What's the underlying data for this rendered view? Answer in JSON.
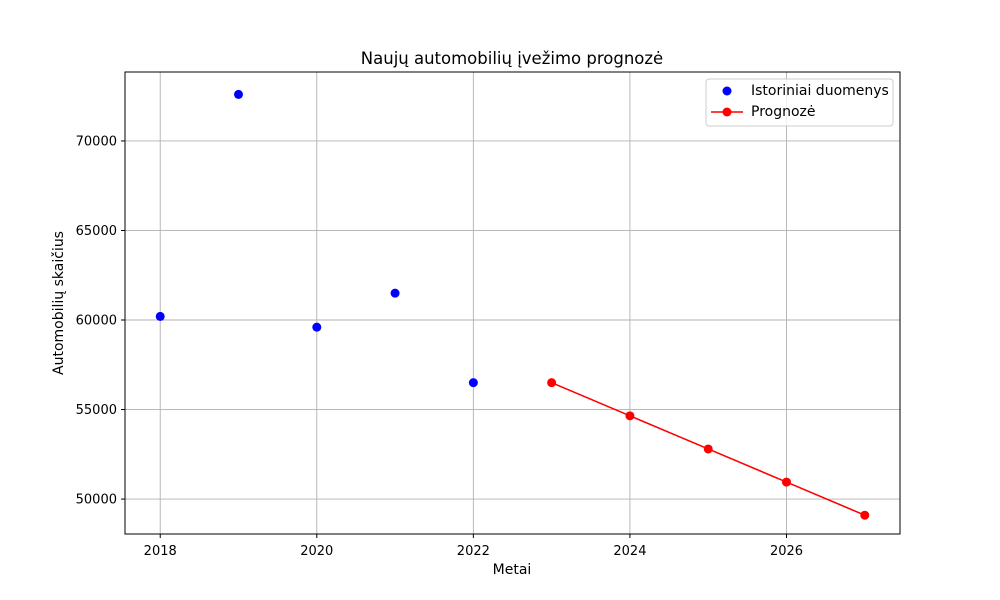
{
  "chart_data": {
    "type": "scatter",
    "title": "Naujų automobilių įvežimo prognozė",
    "xlabel": "Metai",
    "ylabel": "Automobilių skaičius",
    "xlim": [
      2017.55,
      2027.45
    ],
    "ylim": [
      48050,
      73850
    ],
    "xticks": [
      2018,
      2020,
      2022,
      2024,
      2026
    ],
    "yticks": [
      50000,
      55000,
      60000,
      65000,
      70000
    ],
    "grid": true,
    "legend_position": "top-right",
    "series": [
      {
        "name": "Istoriniai duomenys",
        "type": "scatter",
        "color": "#0000ff",
        "x": [
          2018,
          2019,
          2020,
          2021,
          2022
        ],
        "y": [
          60200,
          72600,
          59600,
          61500,
          56500
        ]
      },
      {
        "name": "Prognozė",
        "type": "line",
        "color": "#ff0000",
        "x": [
          2023,
          2024,
          2025,
          2026,
          2027
        ],
        "y": [
          56500,
          54650,
          52800,
          50950,
          49100
        ]
      }
    ]
  }
}
